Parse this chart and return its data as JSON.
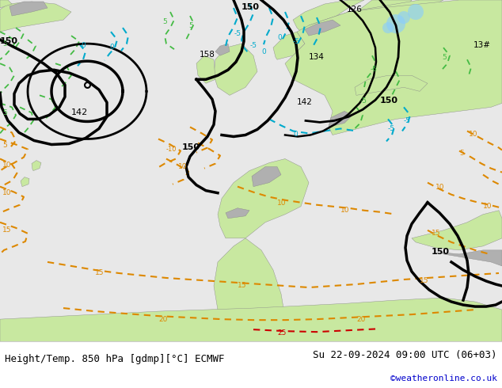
{
  "figsize": [
    6.34,
    4.9
  ],
  "dpi": 100,
  "caption_left": "Height/Temp. 850 hPa [gdmp][°C] ECMWF",
  "caption_right": "Su 22-09-2024 09:00 UTC (06+03)",
  "caption_url": "©weatheronline.co.uk",
  "caption_color": "#000000",
  "url_color": "#0000cc",
  "caption_fontsize": 9.0,
  "url_fontsize": 8.0,
  "ocean_color": "#e8e8e8",
  "land_green_color": "#c8e8a0",
  "land_gray_color": "#b0b0b0",
  "contour_black_lw": 2.5,
  "contour_color_lw": 1.3,
  "green_contour_color": "#44bb44",
  "cyan_contour_color": "#00aacc",
  "orange_contour_color": "#dd8800",
  "blue_contour_color": "#0044cc",
  "red_contour_color": "#cc0000"
}
